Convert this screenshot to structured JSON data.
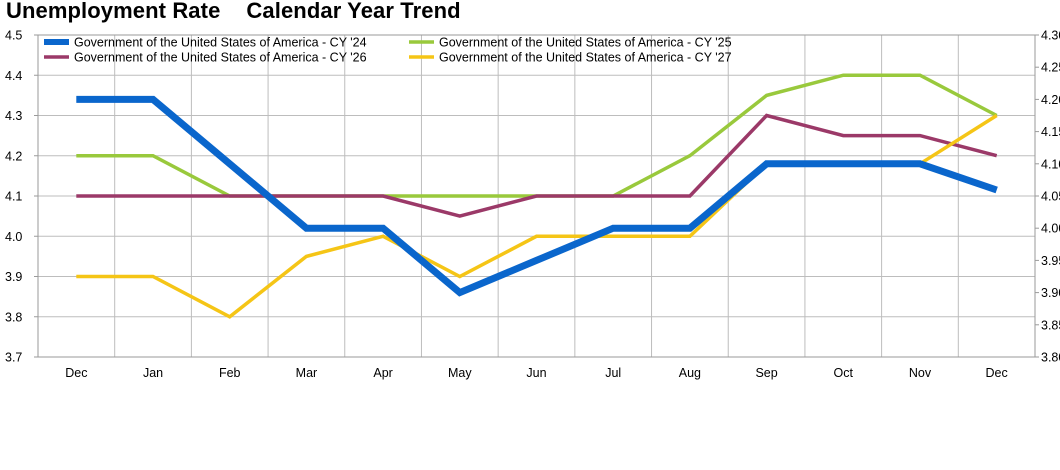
{
  "title": "Unemployment Rate",
  "subtitle": "Calendar Year Trend",
  "chart_data": {
    "type": "line",
    "categories": [
      "Dec",
      "Jan",
      "Feb",
      "Mar",
      "Apr",
      "May",
      "Jun",
      "Jul",
      "Aug",
      "Sep",
      "Oct",
      "Nov",
      "Dec"
    ],
    "left_axis": {
      "ylim": [
        3.7,
        4.5
      ],
      "ticks": [
        "3.7",
        "3.8",
        "3.9",
        "4.0",
        "4.1",
        "4.2",
        "4.3",
        "4.4",
        "4.5"
      ]
    },
    "right_axis": {
      "ylim": [
        3.8,
        4.3
      ],
      "ticks": [
        "3.80",
        "3.85",
        "3.90",
        "3.95",
        "4.00",
        "4.05",
        "4.10",
        "4.15",
        "4.20",
        "4.25",
        "4.30"
      ]
    },
    "grid": true,
    "legend_position": "top-left",
    "series": [
      {
        "name": "Government of the United States of America - CY '24",
        "color": "#0a66cc",
        "axis": "left",
        "values": [
          4.34,
          4.34,
          4.18,
          4.02,
          4.02,
          3.86,
          3.94,
          4.02,
          4.02,
          4.18,
          4.18,
          4.18,
          4.115
        ]
      },
      {
        "name": "Government of the United States of America - CY '25",
        "color": "#99c93c",
        "axis": "left",
        "values": [
          4.2,
          4.2,
          4.1,
          4.1,
          4.1,
          4.1,
          4.1,
          4.1,
          4.2,
          4.35,
          4.4,
          4.4,
          4.3
        ]
      },
      {
        "name": "Government of the United States of America - CY '26",
        "color": "#9b3968",
        "axis": "left",
        "values": [
          4.1,
          4.1,
          4.1,
          4.1,
          4.1,
          4.05,
          4.1,
          4.1,
          4.1,
          4.3,
          4.25,
          4.25,
          4.2
        ]
      },
      {
        "name": "Government of the United States of America - CY '27",
        "color": "#f5c516",
        "axis": "left",
        "values": [
          3.9,
          3.9,
          3.8,
          3.95,
          4.0,
          3.9,
          4.0,
          4.0,
          4.0,
          4.18,
          4.18,
          4.18,
          4.3
        ]
      }
    ]
  }
}
